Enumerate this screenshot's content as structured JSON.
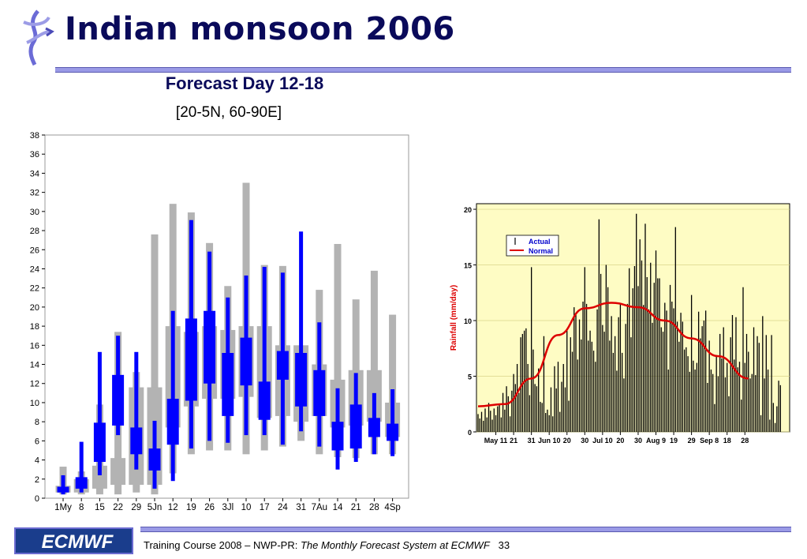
{
  "slide": {
    "title": "Indian monsoon 2006",
    "footer_prefix": "Training Course 2008 – NWP-PR: ",
    "footer_italic": "The Monthly Forecast System at ECMWF",
    "page_number": "33",
    "logo_text": "ECMWF",
    "accent_color": "#0000ff",
    "rule_color": "#9a9ae6"
  },
  "chart_data": [
    {
      "type": "box",
      "title": "Forecast Day 12-18",
      "subtitle": "[20-5N, 60-90E]",
      "ylim": [
        0,
        38
      ],
      "yticks": [
        0,
        2,
        4,
        6,
        8,
        10,
        12,
        14,
        16,
        18,
        20,
        22,
        24,
        26,
        28,
        30,
        32,
        34,
        36,
        38
      ],
      "categories": [
        "1My",
        "8",
        "15",
        "22",
        "29",
        "5Jn",
        "12",
        "19",
        "26",
        "3Jl",
        "10",
        "17",
        "24",
        "31",
        "7Au",
        "14",
        "21",
        "28",
        "4Sp"
      ],
      "series": [
        {
          "role": "climate",
          "color": "#b3b3b3",
          "whisker": [
            [
              0.4,
              3.3
            ],
            [
              0.4,
              2.8
            ],
            [
              0.4,
              9.8
            ],
            [
              0.4,
              17.4
            ],
            [
              0.6,
              13.2
            ],
            [
              0.4,
              27.6
            ],
            [
              2.6,
              30.8
            ],
            [
              4.6,
              29.9
            ],
            [
              5.0,
              26.7
            ],
            [
              5.0,
              22.2
            ],
            [
              4.6,
              33.0
            ],
            [
              5.0,
              24.4
            ],
            [
              5.4,
              24.3
            ],
            [
              6.0,
              15.1
            ],
            [
              4.6,
              21.8
            ],
            [
              4.3,
              26.6
            ],
            [
              4.2,
              20.8
            ],
            [
              4.6,
              23.8
            ],
            [
              4.6,
              19.2
            ]
          ],
          "box": [
            [
              0.6,
              1.3
            ],
            [
              0.6,
              2.0
            ],
            [
              1.0,
              3.4
            ],
            [
              1.4,
              4.2
            ],
            [
              1.4,
              11.6
            ],
            [
              1.4,
              11.6
            ],
            [
              7.4,
              18.0
            ],
            [
              9.6,
              17.4
            ],
            [
              10.4,
              18.0
            ],
            [
              10.4,
              17.6
            ],
            [
              10.6,
              18.0
            ],
            [
              8.4,
              18.0
            ],
            [
              8.6,
              16.0
            ],
            [
              8.0,
              16.0
            ],
            [
              8.6,
              14.0
            ],
            [
              7.4,
              12.4
            ],
            [
              7.6,
              13.4
            ],
            [
              8.0,
              13.4
            ],
            [
              6.4,
              10.0
            ]
          ]
        },
        {
          "role": "forecast",
          "color": "#0000ff",
          "whisker": [
            [
              0.4,
              2.4
            ],
            [
              0.6,
              5.9
            ],
            [
              2.4,
              15.3
            ],
            [
              6.6,
              17.0
            ],
            [
              3.0,
              15.3
            ],
            [
              1.0,
              8.1
            ],
            [
              1.8,
              19.6
            ],
            [
              5.2,
              29.1
            ],
            [
              6.0,
              25.8
            ],
            [
              5.8,
              21.0
            ],
            [
              6.6,
              23.3
            ],
            [
              6.6,
              24.2
            ],
            [
              5.6,
              23.6
            ],
            [
              7.0,
              27.9
            ],
            [
              5.4,
              18.4
            ],
            [
              3.0,
              11.5
            ],
            [
              3.8,
              13.1
            ],
            [
              4.6,
              11.0
            ],
            [
              4.4,
              11.4
            ]
          ],
          "box": [
            [
              0.6,
              1.2
            ],
            [
              1.0,
              2.2
            ],
            [
              3.8,
              7.9
            ],
            [
              7.6,
              12.9
            ],
            [
              4.6,
              7.4
            ],
            [
              2.9,
              5.2
            ],
            [
              5.6,
              10.4
            ],
            [
              10.2,
              18.8
            ],
            [
              12.0,
              19.6
            ],
            [
              8.6,
              15.2
            ],
            [
              11.8,
              16.8
            ],
            [
              8.2,
              12.2
            ],
            [
              12.4,
              15.4
            ],
            [
              9.6,
              15.2
            ],
            [
              8.6,
              13.4
            ],
            [
              5.0,
              8.0
            ],
            [
              5.2,
              9.8
            ],
            [
              6.4,
              8.4
            ],
            [
              6.0,
              7.8
            ]
          ]
        }
      ]
    },
    {
      "type": "bar+line",
      "ylabel": "Rainfall (mm/day)",
      "ylim": [
        0,
        20.5
      ],
      "yticks": [
        0,
        5,
        10,
        15,
        20
      ],
      "xticks": [
        "May 11",
        "21",
        "31",
        "Jun 10",
        "20",
        "30",
        "Jul 10",
        "20",
        "30",
        "Aug 9",
        "19",
        "29",
        "Sep 8",
        "18",
        "28"
      ],
      "legend": [
        "Actual",
        "Normal"
      ],
      "legend_position": "top-left",
      "series": [
        {
          "name": "Actual",
          "color": "#000000",
          "start": "May 1",
          "values": [
            1.6,
            1.2,
            1.8,
            1.0,
            2.1,
            1.3,
            2.6,
            1.9,
            1.1,
            2.1,
            1.5,
            2.3,
            2.5,
            1.3,
            3.5,
            2.0,
            4.1,
            3.2,
            1.4,
            3.7,
            5.2,
            4.3,
            6.1,
            3.5,
            8.5,
            8.8,
            9.1,
            9.3,
            6.1,
            3.3,
            14.8,
            7.4,
            4.3,
            4.1,
            5.7,
            2.7,
            2.6,
            8.6,
            1.7,
            2.0,
            1.5,
            4.0,
            1.4,
            5.9,
            3.9,
            6.3,
            1.8,
            4.5,
            6.1,
            4.0,
            9.1,
            2.8,
            8.5,
            7.2,
            11.2,
            10.5,
            6.5,
            10.1,
            8.3,
            11.7,
            14.8,
            11.5,
            8.2,
            9.1,
            8.1,
            7.3,
            6.3,
            11.0,
            19.1,
            14.2,
            9.6,
            9.0,
            15.0,
            13.0,
            8.2,
            10.4,
            7.1,
            8.6,
            5.5,
            10.3,
            11.5,
            7.1,
            4.8,
            9.7,
            11.5,
            14.7,
            8.5,
            12.9,
            14.9,
            19.6,
            13.1,
            17.3,
            15.4,
            11.4,
            18.7,
            13.9,
            11.0,
            15.2,
            9.8,
            13.4,
            16.3,
            13.8,
            13.8,
            9.4,
            9.0,
            11.6,
            10.9,
            5.6,
            13.2,
            11.7,
            11.1,
            18.4,
            9.9,
            8.1,
            10.7,
            9.9,
            7.4,
            7.6,
            6.8,
            5.4,
            12.3,
            6.4,
            5.6,
            6.2,
            10.8,
            8.4,
            9.5,
            10.0,
            10.9,
            4.4,
            8.2,
            5.6,
            5.2,
            2.5,
            6.9,
            5.0,
            8.8,
            6.6,
            9.4,
            4.9,
            6.2,
            3.2,
            8.5,
            10.5,
            6.5,
            10.3,
            5.8,
            6.3,
            2.9,
            13.0,
            6.2,
            8.8,
            7.2,
            4.8,
            5.2,
            9.4,
            5.1,
            8.6,
            8.0,
            1.5,
            10.4,
            4.8,
            8.7,
            5.6,
            1.1,
            8.7,
            2.6,
            0.8,
            2.3,
            4.6,
            4.2
          ]
        },
        {
          "name": "Normal",
          "color": "#dd0000",
          "x": [
            "May 1",
            "May 16",
            "May 31",
            "Jun 15",
            "Jun 30",
            "Jul 15",
            "Jul 30",
            "Aug 14",
            "Aug 29",
            "Sep 13",
            "Sep 30"
          ],
          "values": [
            2.3,
            2.5,
            4.8,
            8.7,
            11.1,
            11.6,
            11.2,
            10.0,
            8.4,
            6.8,
            4.8
          ]
        }
      ]
    }
  ]
}
